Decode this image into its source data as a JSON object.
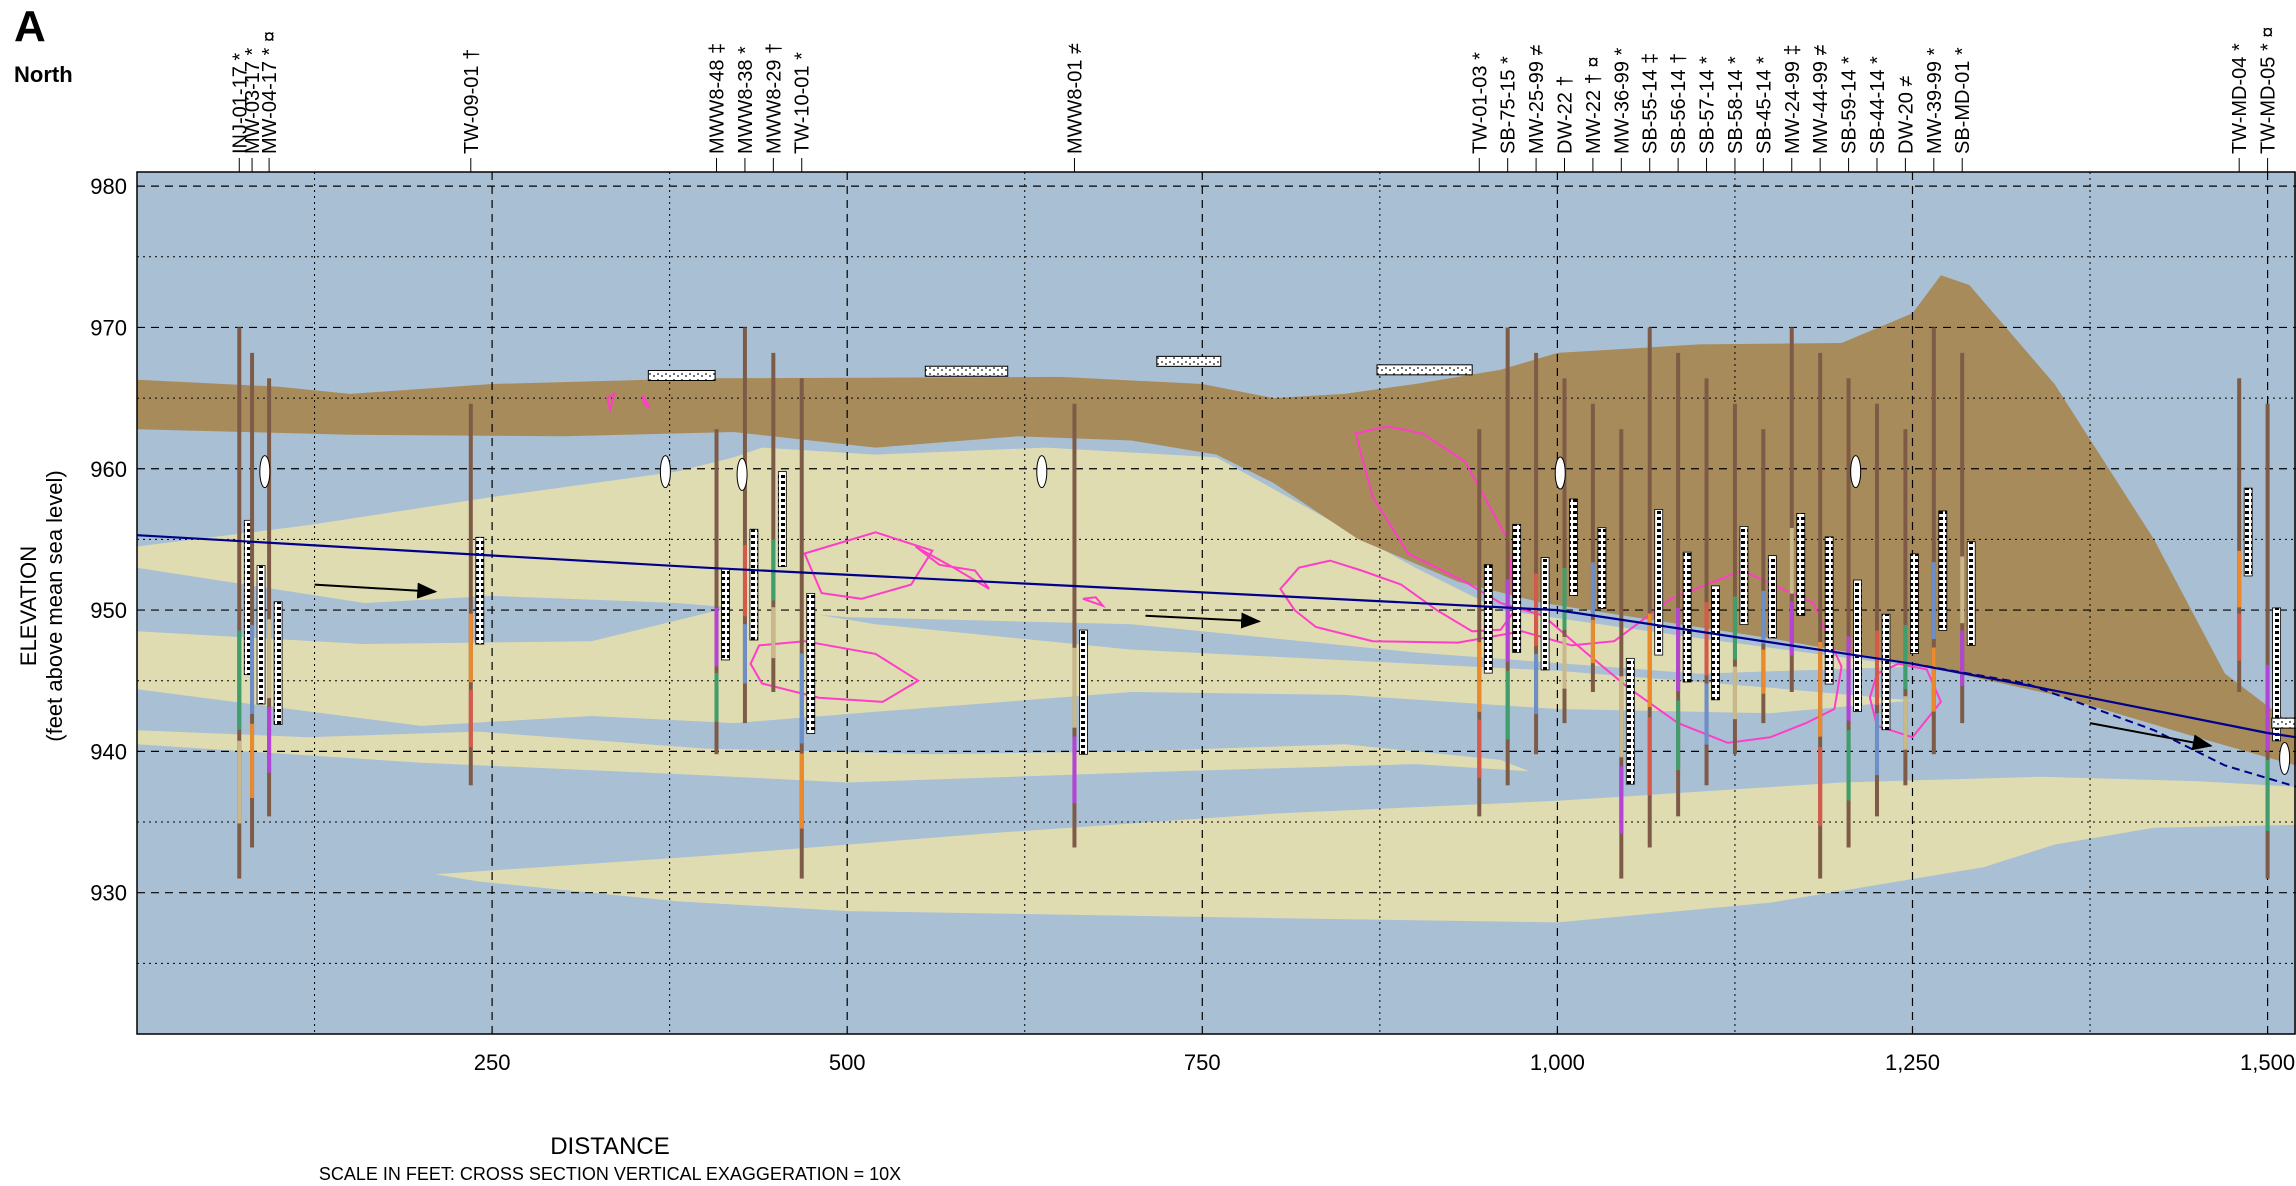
{
  "section": {
    "letter": "A",
    "direction": "North",
    "x_title": "DISTANCE",
    "scale_note": "SCALE IN FEET: CROSS SECTION VERTICAL EXAGGERATION = 10X",
    "y_title_line1": "ELEVATION",
    "y_title_line2": "(feet above mean sea level)"
  },
  "x_axis": {
    "min": 0,
    "max": 1520,
    "ticks": [
      250,
      500,
      750,
      1000,
      1250,
      1500
    ],
    "tick_labels": [
      "250",
      "500",
      "750",
      "1,000",
      "1,250",
      "1,500"
    ]
  },
  "y_axis": {
    "min": 920,
    "max": 981,
    "ticks": [
      930,
      940,
      950,
      960,
      970,
      980
    ],
    "tick_labels": [
      "930",
      "940",
      "950",
      "960",
      "970",
      "980"
    ]
  },
  "colors": {
    "fill_blue": "#a9bfd3",
    "sand": "#e0dcb1",
    "topsoil": "#a88b5a",
    "water_table": "#00008b",
    "plume": "#ff3dc8",
    "casing": "#7e5b47"
  },
  "wells": [
    {
      "name": "INJ-01-17 *",
      "x": 72
    },
    {
      "name": "MW-03-17 *",
      "x": 81
    },
    {
      "name": "MW-04-17 * ¤",
      "x": 93
    },
    {
      "name": "TW-09-01 †",
      "x": 235
    },
    {
      "name": "MWW8-48 ‡",
      "x": 408
    },
    {
      "name": "MWW8-38 *",
      "x": 428
    },
    {
      "name": "MWW8-29 †",
      "x": 448
    },
    {
      "name": "TW-10-01 *",
      "x": 468
    },
    {
      "name": "MWW8-01 ≠",
      "x": 660
    },
    {
      "name": "TW-01-03 *",
      "x": 945
    },
    {
      "name": "SB-75-15 *",
      "x": 965
    },
    {
      "name": "MW-25-99 ≠",
      "x": 985
    },
    {
      "name": "DW-22 †",
      "x": 1005
    },
    {
      "name": "MW-22 † ¤",
      "x": 1025
    },
    {
      "name": "MW-36-99 *",
      "x": 1045
    },
    {
      "name": "SB-55-14 ‡",
      "x": 1065
    },
    {
      "name": "SB-56-14 †",
      "x": 1085
    },
    {
      "name": "SB-57-14 *",
      "x": 1105
    },
    {
      "name": "SB-58-14 *",
      "x": 1125
    },
    {
      "name": "SB-45-14 *",
      "x": 1145
    },
    {
      "name": "MW-24-99 ‡",
      "x": 1165
    },
    {
      "name": "MW-44-99 ≠",
      "x": 1185
    },
    {
      "name": "SB-59-14 *",
      "x": 1205
    },
    {
      "name": "SB-44-14 *",
      "x": 1225
    },
    {
      "name": "DW-20 ≠",
      "x": 1245
    },
    {
      "name": "MW-39-99 *",
      "x": 1265
    },
    {
      "name": "SB-MD-01 *",
      "x": 1285
    },
    {
      "name": "TW-MD-04 *",
      "x": 1480
    },
    {
      "name": "TW-MD-05 * ¤",
      "x": 1500
    }
  ],
  "water_table": [
    [
      0,
      955.3
    ],
    [
      400,
      953.0
    ],
    [
      800,
      951.0
    ],
    [
      1000,
      950.0
    ],
    [
      1250,
      946.2
    ],
    [
      1340,
      944.5
    ],
    [
      1500,
      941.3
    ],
    [
      1520,
      941.0
    ]
  ],
  "water_table_dashed": [
    [
      1250,
      946.2
    ],
    [
      1330,
      944.8
    ],
    [
      1420,
      941.5
    ],
    [
      1470,
      939.0
    ],
    [
      1520,
      937.5
    ]
  ],
  "flow_arrows": [
    [
      [
        125,
        951.8
      ],
      [
        210,
        951.3
      ]
    ],
    [
      [
        710,
        949.6
      ],
      [
        790,
        949.2
      ]
    ],
    [
      [
        1375,
        942.0
      ],
      [
        1460,
        940.4
      ]
    ]
  ],
  "surface": [
    [
      0,
      966.3
    ],
    [
      100,
      965.8
    ],
    [
      150,
      965.3
    ],
    [
      250,
      966.0
    ],
    [
      400,
      966.4
    ],
    [
      650,
      966.5
    ],
    [
      750,
      966.0
    ],
    [
      800,
      965.0
    ],
    [
      850,
      965.3
    ],
    [
      900,
      966.0
    ],
    [
      960,
      967.0
    ],
    [
      1000,
      968.2
    ],
    [
      1100,
      968.8
    ],
    [
      1200,
      968.9
    ],
    [
      1250,
      971.0
    ],
    [
      1270,
      973.7
    ],
    [
      1290,
      973.0
    ],
    [
      1350,
      966.0
    ],
    [
      1420,
      955.0
    ],
    [
      1470,
      945.5
    ],
    [
      1520,
      941.7
    ]
  ],
  "clay_base": [
    [
      0,
      962.8
    ],
    [
      150,
      962.4
    ],
    [
      300,
      962.3
    ],
    [
      420,
      962.6
    ],
    [
      520,
      961.5
    ],
    [
      620,
      962.3
    ],
    [
      700,
      962.0
    ],
    [
      760,
      961.0
    ],
    [
      800,
      959.0
    ],
    [
      860,
      955.0
    ],
    [
      930,
      952.0
    ],
    [
      990,
      950.5
    ],
    [
      1060,
      949.4
    ],
    [
      1150,
      948.0
    ],
    [
      1250,
      946.2
    ],
    [
      1350,
      944.0
    ],
    [
      1450,
      941.0
    ],
    [
      1520,
      939.0
    ]
  ],
  "sand_lenses": [
    [
      [
        0,
        954.5
      ],
      [
        120,
        956.0
      ],
      [
        250,
        958.0
      ],
      [
        380,
        959.8
      ],
      [
        420,
        960.8
      ],
      [
        440,
        961.5
      ],
      [
        520,
        961.0
      ],
      [
        640,
        961.5
      ],
      [
        760,
        960.8
      ],
      [
        900,
        953.0
      ],
      [
        960,
        950.0
      ],
      [
        1100,
        948.0
      ],
      [
        1250,
        946.0
      ],
      [
        1100,
        945.5
      ],
      [
        900,
        947.0
      ],
      [
        700,
        949.0
      ],
      [
        500,
        949.5
      ],
      [
        380,
        950.5
      ],
      [
        250,
        951.0
      ],
      [
        160,
        950.5
      ],
      [
        0,
        953.0
      ]
    ],
    [
      [
        0,
        948.5
      ],
      [
        160,
        947.6
      ],
      [
        320,
        947.8
      ],
      [
        430,
        950.5
      ],
      [
        520,
        949.0
      ],
      [
        700,
        947.2
      ],
      [
        880,
        946.3
      ],
      [
        1000,
        945.7
      ],
      [
        1150,
        944.5
      ],
      [
        1250,
        943.6
      ],
      [
        1150,
        942.7
      ],
      [
        1000,
        943.0
      ],
      [
        850,
        944.0
      ],
      [
        700,
        944.2
      ],
      [
        520,
        942.8
      ],
      [
        420,
        942.0
      ],
      [
        320,
        942.5
      ],
      [
        200,
        941.8
      ],
      [
        0,
        944.4
      ]
    ],
    [
      [
        0,
        941.5
      ],
      [
        120,
        941.0
      ],
      [
        240,
        941.4
      ],
      [
        400,
        940.2
      ],
      [
        560,
        939.8
      ],
      [
        700,
        940.0
      ],
      [
        850,
        940.5
      ],
      [
        960,
        939.4
      ],
      [
        980,
        938.6
      ],
      [
        900,
        939.1
      ],
      [
        700,
        938.5
      ],
      [
        500,
        937.8
      ],
      [
        380,
        938.4
      ],
      [
        200,
        939.2
      ],
      [
        0,
        940.5
      ]
    ],
    [
      [
        210,
        931.3
      ],
      [
        400,
        932.6
      ],
      [
        600,
        934.2
      ],
      [
        800,
        935.6
      ],
      [
        1000,
        936.5
      ],
      [
        1200,
        937.8
      ],
      [
        1340,
        938.2
      ],
      [
        1450,
        937.9
      ],
      [
        1520,
        937.5
      ],
      [
        1520,
        934.8
      ],
      [
        1420,
        934.6
      ],
      [
        1350,
        933.4
      ],
      [
        1300,
        931.8
      ],
      [
        1150,
        929.3
      ],
      [
        1000,
        927.9
      ],
      [
        800,
        928.2
      ],
      [
        500,
        928.7
      ],
      [
        380,
        929.4
      ],
      [
        240,
        930.8
      ]
    ]
  ],
  "plumes": [
    [
      [
        858,
        962.5
      ],
      [
        880,
        963.0
      ],
      [
        905,
        962.5
      ],
      [
        935,
        960.5
      ],
      [
        965,
        955.0
      ],
      [
        970,
        950.0
      ],
      [
        960,
        948.6
      ],
      [
        940,
        948.5
      ],
      [
        915,
        950.0
      ],
      [
        890,
        951.8
      ],
      [
        862,
        952.8
      ],
      [
        840,
        953.5
      ],
      [
        818,
        953.0
      ],
      [
        805,
        951.5
      ],
      [
        815,
        950.0
      ],
      [
        830,
        948.8
      ],
      [
        870,
        947.8
      ],
      [
        930,
        947.7
      ],
      [
        975,
        948.5
      ],
      [
        1010,
        947.5
      ],
      [
        1040,
        947.8
      ],
      [
        1080,
        950.8
      ],
      [
        1130,
        952.8
      ],
      [
        1180,
        950.5
      ],
      [
        1200,
        946.0
      ],
      [
        1195,
        943.0
      ],
      [
        1175,
        942.0
      ],
      [
        1150,
        941.0
      ],
      [
        1120,
        940.6
      ],
      [
        1085,
        942.0
      ],
      [
        1050,
        944.5
      ],
      [
        1020,
        947.0
      ],
      [
        990,
        949.6
      ],
      [
        960,
        950.5
      ],
      [
        935,
        952.0
      ],
      [
        895,
        954.0
      ],
      [
        870,
        958.0
      ],
      [
        858,
        962.5
      ]
    ],
    [
      [
        470,
        954.0
      ],
      [
        520,
        955.5
      ],
      [
        560,
        954.2
      ],
      [
        545,
        951.8
      ],
      [
        510,
        950.8
      ],
      [
        482,
        951.2
      ],
      [
        470,
        954.0
      ]
    ],
    [
      [
        438,
        947.5
      ],
      [
        470,
        947.8
      ],
      [
        520,
        946.9
      ],
      [
        550,
        945.0
      ],
      [
        525,
        943.5
      ],
      [
        480,
        943.8
      ],
      [
        440,
        944.8
      ],
      [
        432,
        946.2
      ],
      [
        438,
        947.5
      ]
    ],
    [
      [
        548,
        954.5
      ],
      [
        575,
        953.0
      ],
      [
        600,
        951.5
      ],
      [
        590,
        952.8
      ],
      [
        565,
        953.2
      ],
      [
        548,
        954.5
      ]
    ],
    [
      [
        666,
        950.8
      ],
      [
        680,
        950.3
      ],
      [
        675,
        950.9
      ],
      [
        666,
        950.8
      ]
    ],
    [
      [
        331,
        965.0
      ],
      [
        336,
        965.3
      ],
      [
        333,
        964.2
      ],
      [
        331,
        965.0
      ]
    ],
    [
      [
        356,
        965.2
      ],
      [
        361,
        964.3
      ],
      [
        357,
        964.6
      ],
      [
        356,
        965.2
      ]
    ],
    [
      [
        1225,
        945.5
      ],
      [
        1240,
        946.2
      ],
      [
        1260,
        945.8
      ],
      [
        1270,
        943.5
      ],
      [
        1250,
        941.0
      ],
      [
        1225,
        941.8
      ],
      [
        1220,
        943.8
      ],
      [
        1225,
        945.5
      ]
    ]
  ],
  "pavement": [
    [
      360,
      407,
      966.6
    ],
    [
      555,
      613,
      966.9
    ],
    [
      718,
      763,
      967.6
    ],
    [
      873,
      940,
      967.0
    ],
    [
      1503,
      1540,
      942.0
    ]
  ],
  "sample_markers": [
    [
      90,
      959.8
    ],
    [
      372,
      959.8
    ],
    [
      426,
      959.6
    ],
    [
      637,
      959.8
    ],
    [
      1002,
      959.7
    ],
    [
      1210,
      959.8
    ],
    [
      1512,
      939.5
    ],
    [
      1525,
      937.6
    ]
  ]
}
